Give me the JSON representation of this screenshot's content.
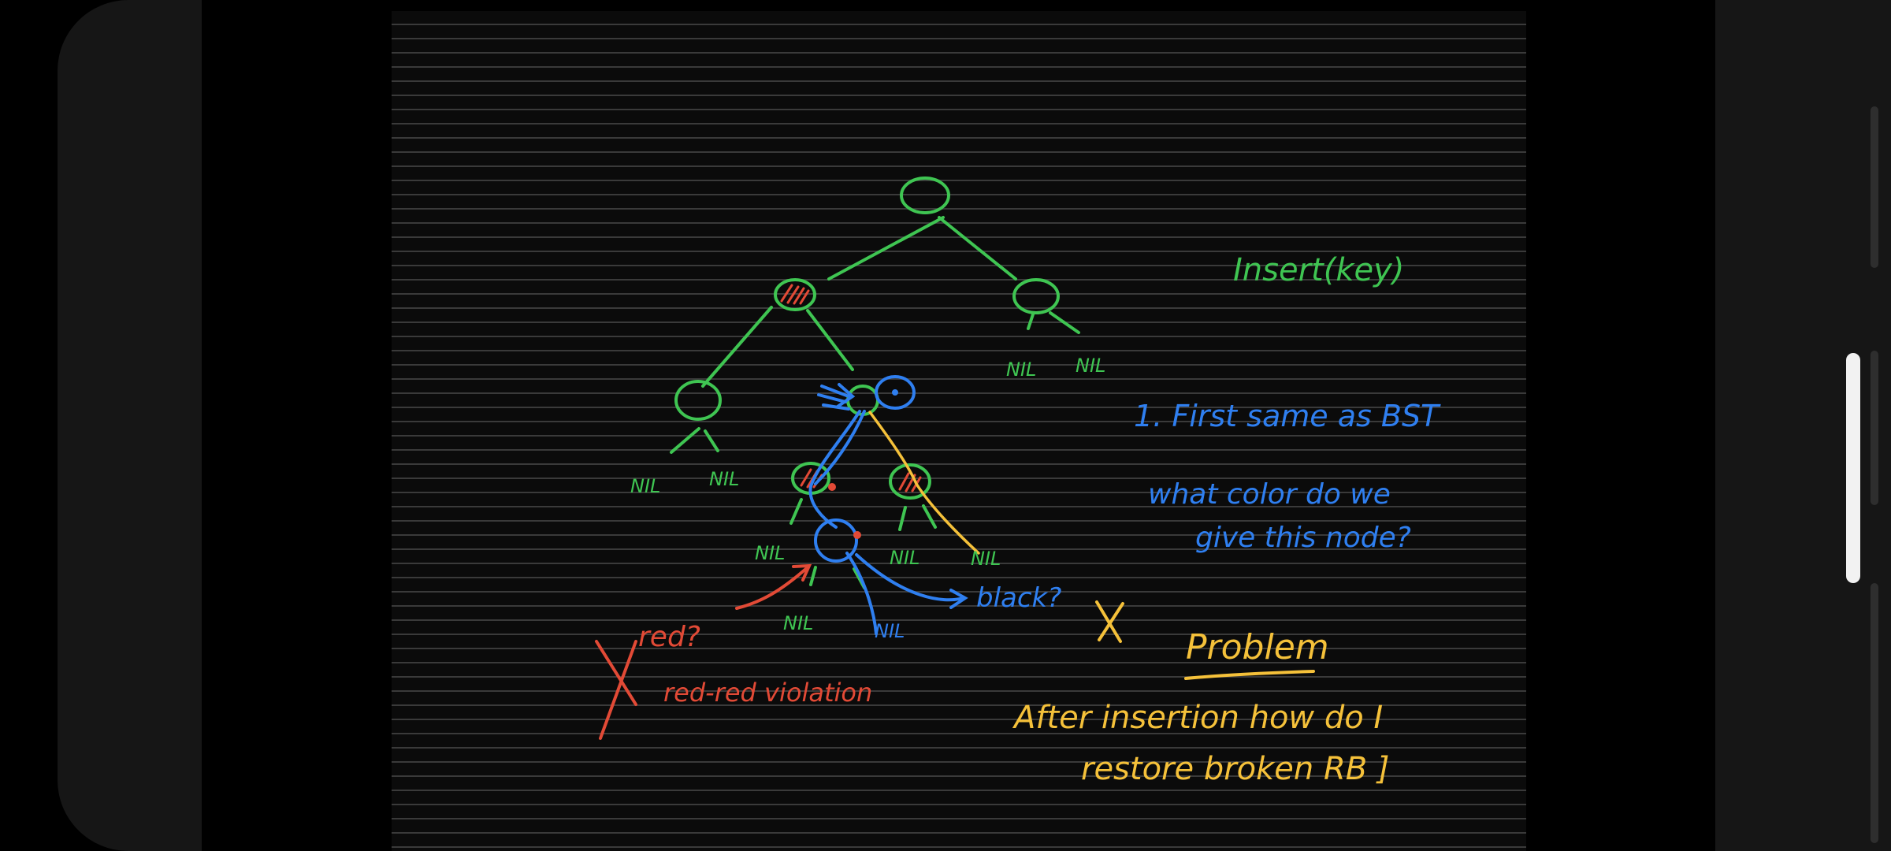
{
  "colors": {
    "green": "#3fc552",
    "blue": "#2f7ff0",
    "red": "#e24a36",
    "yellow": "#f5c13a",
    "background": "#0b0b0b",
    "ruled_line": "#3a3a3a"
  },
  "tree": {
    "nil": "NIL"
  },
  "notes": {
    "insert_title": "Insert(key)",
    "step_1": "1. First same as BST",
    "question_line1": "what color do we",
    "question_line2": "give this node?",
    "red_q": "red?",
    "red_red": "red-red violation",
    "black_q": "black?",
    "cross": "X",
    "problem": "Problem",
    "after_line1": "After insertion how do I",
    "after_line2": "restore broken RB ]"
  }
}
